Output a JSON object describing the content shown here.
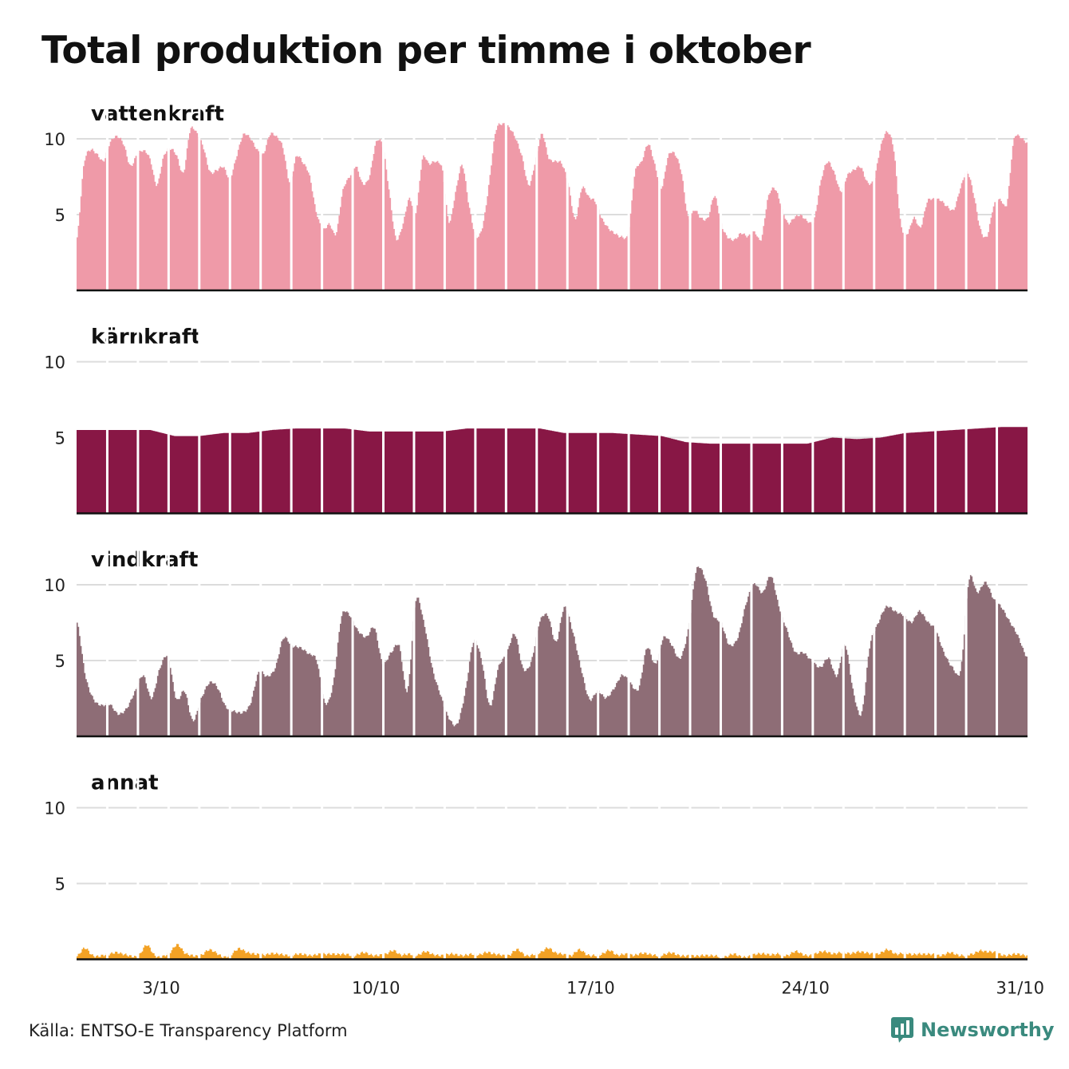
{
  "title": "Total produktion per timme i oktober",
  "source": "Källa: ENTSO-E Transparency Platform",
  "brand": {
    "name": "Newsworthy",
    "icon": "newsworthy-logo-icon",
    "color": "#3a8a7e"
  },
  "chart_data": {
    "type": "area",
    "x_tick_labels": [
      "3/10",
      "10/10",
      "17/10",
      "24/10",
      "31/10"
    ],
    "x_tick_days": [
      3,
      10,
      17,
      24,
      31
    ],
    "y_ticks": [
      5,
      10
    ],
    "ylim": [
      0,
      12
    ],
    "grid": true,
    "days": 31,
    "series": [
      {
        "name": "vattenkraft",
        "color": "#ef9aa8",
        "daily_profile": [
          [
            3.5,
            8.2,
            9.3,
            9.0
          ],
          [
            8.5,
            9.8,
            10.2,
            9.6
          ],
          [
            8.2,
            9.0,
            9.2,
            8.6
          ],
          [
            7.0,
            8.8,
            9.3,
            8.9
          ],
          [
            7.8,
            10.5,
            10.4,
            9.5
          ],
          [
            7.8,
            7.9,
            8.2,
            7.4
          ],
          [
            8.8,
            10.3,
            10.1,
            9.3
          ],
          [
            9.0,
            10.3,
            10.1,
            9.4
          ],
          [
            7.2,
            8.8,
            8.4,
            7.6
          ],
          [
            5.2,
            4.0,
            4.4,
            3.8
          ],
          [
            6.5,
            7.5,
            8.2,
            7.0
          ],
          [
            7.5,
            9.8,
            9.5,
            6.5
          ],
          [
            3.5,
            4.3,
            6.0,
            5.2
          ],
          [
            8.7,
            8.3,
            8.5,
            8.0
          ],
          [
            4.5,
            6.5,
            8.3,
            5.6
          ],
          [
            3.6,
            4.2,
            7.0,
            10.4
          ],
          [
            11.0,
            10.8,
            10.0,
            8.8
          ],
          [
            7.0,
            8.5,
            10.3,
            8.8
          ],
          [
            8.5,
            8.3,
            7.0,
            4.7
          ],
          [
            6.7,
            6.2,
            5.9,
            4.7
          ],
          [
            4.1,
            3.8,
            3.5,
            3.8
          ],
          [
            7.8,
            8.5,
            9.6,
            8.3
          ],
          [
            6.8,
            8.8,
            9.0,
            7.8
          ],
          [
            4.8,
            5.3,
            4.8,
            4.8
          ],
          [
            6.2,
            4.4,
            3.5,
            3.3
          ],
          [
            3.8,
            3.6,
            3.8,
            3.4
          ],
          [
            6.1,
            6.7,
            5.6,
            4.5
          ],
          [
            4.8,
            4.9,
            4.6,
            4.7
          ],
          [
            7.2,
            8.5,
            7.8,
            6.5
          ],
          [
            7.6,
            8.0,
            8.1,
            7.1
          ],
          [
            7.4,
            9.5,
            10.4,
            9.2
          ],
          [
            4.5,
            3.7,
            4.8,
            4.2
          ],
          [
            5.8,
            6.0,
            6.0,
            5.5
          ],
          [
            5.3,
            6.8,
            7.8,
            6.3
          ],
          [
            4.1,
            3.6,
            5.5,
            6.0
          ],
          [
            5.8,
            9.8,
            10.1,
            9.8
          ]
        ],
        "hourly_values": []
      },
      {
        "name": "kärnkraft",
        "color": "#881745",
        "daily_levels": [
          5.5,
          5.5,
          5.5,
          5.5,
          5.1,
          5.1,
          5.3,
          5.3,
          5.5,
          5.6,
          5.6,
          5.6,
          5.4,
          5.4,
          5.4,
          5.4,
          5.6,
          5.6,
          5.6,
          5.6,
          5.3,
          5.3,
          5.3,
          5.2,
          5.1,
          4.7,
          4.6,
          4.6,
          4.6,
          4.6,
          4.6,
          5.0,
          4.9,
          5.0,
          5.3,
          5.4,
          5.5,
          5.6,
          5.7,
          5.7
        ]
      },
      {
        "name": "vindkraft",
        "color": "#8e6d76",
        "daily_profile": [
          [
            7.5,
            4.0,
            2.5,
            2.0
          ],
          [
            2.1,
            1.5,
            1.8,
            3.0
          ],
          [
            4.0,
            2.5,
            4.5,
            5.2
          ],
          [
            2.5,
            3.0,
            1.0,
            2.5
          ],
          [
            3.5,
            3.2,
            2.0,
            1.6
          ],
          [
            1.6,
            2.2,
            4.2,
            4.0
          ],
          [
            4.5,
            6.5,
            6.0,
            5.8
          ],
          [
            5.5,
            5.0,
            2.2,
            3.5
          ],
          [
            7.8,
            8.0,
            7.0,
            6.5
          ],
          [
            7.2,
            4.8,
            5.5,
            6.0
          ],
          [
            3.0,
            9.0,
            7.5,
            4.5
          ],
          [
            2.8,
            1.2,
            0.8,
            3.0
          ],
          [
            6.2,
            5.0,
            2.0,
            4.5
          ],
          [
            5.5,
            6.7,
            4.5,
            5.0
          ],
          [
            7.5,
            8.0,
            6.2,
            8.5
          ],
          [
            7.0,
            4.5,
            2.5,
            3.0
          ],
          [
            2.5,
            3.2,
            4.0,
            3.5
          ],
          [
            3.2,
            5.8,
            4.8,
            6.5
          ],
          [
            6.0,
            5.2,
            7.0,
            11.0
          ],
          [
            10.5,
            8.0,
            7.5,
            6.0
          ],
          [
            6.5,
            8.8,
            10.0,
            9.5
          ],
          [
            10.6,
            8.5,
            7.0,
            5.5
          ],
          [
            5.5,
            5.0,
            4.5,
            5.2
          ],
          [
            4.0,
            6.0,
            3.0,
            1.5
          ],
          [
            6.0,
            7.5,
            8.5,
            8.3
          ],
          [
            8.0,
            7.5,
            8.3,
            7.5
          ],
          [
            7.0,
            5.5,
            4.5,
            4.5
          ],
          [
            10.3,
            9.5,
            10.2,
            9.0
          ],
          [
            8.5,
            7.5,
            6.5,
            5.3
          ]
        ],
        "hourly_values": []
      },
      {
        "name": "annat",
        "color": "#f3a225",
        "daily_profile": [
          [
            0.2,
            0.7,
            0.3,
            0.2
          ],
          [
            0.3,
            0.5,
            0.3,
            0.2
          ],
          [
            0.3,
            0.9,
            0.3,
            0.2
          ],
          [
            0.4,
            1.0,
            0.4,
            0.2
          ],
          [
            0.3,
            0.6,
            0.4,
            0.2
          ],
          [
            0.3,
            0.7,
            0.5,
            0.3
          ],
          [
            0.3,
            0.4,
            0.3,
            0.3
          ],
          [
            0.3,
            0.3,
            0.3,
            0.3
          ],
          [
            0.3,
            0.4,
            0.3,
            0.3
          ],
          [
            0.3,
            0.4,
            0.3,
            0.3
          ],
          [
            0.3,
            0.6,
            0.3,
            0.3
          ],
          [
            0.3,
            0.5,
            0.3,
            0.3
          ],
          [
            0.3,
            0.3,
            0.3,
            0.3
          ],
          [
            0.3,
            0.5,
            0.3,
            0.3
          ],
          [
            0.3,
            0.6,
            0.3,
            0.3
          ],
          [
            0.4,
            0.8,
            0.4,
            0.3
          ],
          [
            0.3,
            0.6,
            0.3,
            0.3
          ],
          [
            0.3,
            0.6,
            0.3,
            0.3
          ],
          [
            0.3,
            0.4,
            0.3,
            0.3
          ],
          [
            0.3,
            0.4,
            0.3,
            0.2
          ],
          [
            0.2,
            0.3,
            0.2,
            0.2
          ],
          [
            0.2,
            0.3,
            0.2,
            0.2
          ],
          [
            0.3,
            0.4,
            0.3,
            0.3
          ],
          [
            0.3,
            0.5,
            0.3,
            0.3
          ],
          [
            0.4,
            0.5,
            0.4,
            0.4
          ],
          [
            0.4,
            0.5,
            0.4,
            0.4
          ],
          [
            0.4,
            0.6,
            0.4,
            0.4
          ],
          [
            0.3,
            0.4,
            0.3,
            0.3
          ],
          [
            0.3,
            0.4,
            0.3,
            0.3
          ],
          [
            0.3,
            0.6,
            0.5,
            0.4
          ],
          [
            0.3,
            0.3,
            0.3,
            0.3
          ]
        ],
        "hourly_values": []
      }
    ]
  }
}
